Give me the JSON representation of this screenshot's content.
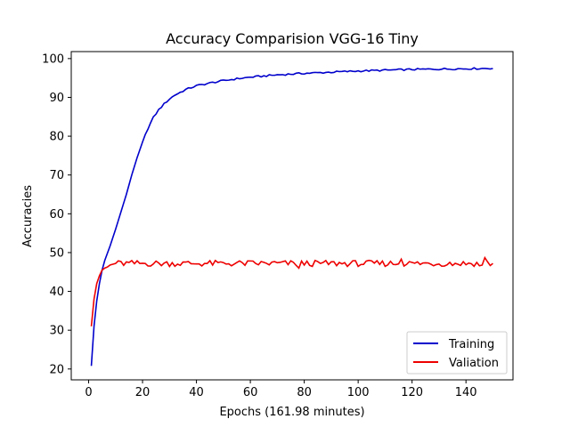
{
  "chart_data": {
    "type": "line",
    "title": "Accuracy Comparision VGG-16 Tiny",
    "xlabel": "Epochs (161.98 minutes)",
    "ylabel": "Accuracies",
    "xlim": [
      -6.45,
      157.45
    ],
    "ylim": [
      17.2,
      101.8
    ],
    "xticks": [
      0,
      20,
      40,
      60,
      80,
      100,
      120,
      140
    ],
    "yticks": [
      20,
      30,
      40,
      50,
      60,
      70,
      80,
      90,
      100
    ],
    "grid": false,
    "legend_position": "bottom-right",
    "series": [
      {
        "name": "Training",
        "color": "#0000cc",
        "anchors": [
          [
            1,
            20.8
          ],
          [
            2,
            31
          ],
          [
            3,
            37.5
          ],
          [
            4,
            42
          ],
          [
            5,
            45.5
          ],
          [
            6,
            48
          ],
          [
            8,
            51.8
          ],
          [
            10,
            56
          ],
          [
            12,
            60.5
          ],
          [
            14,
            65
          ],
          [
            16,
            70
          ],
          [
            18,
            74.5
          ],
          [
            20,
            78.5
          ],
          [
            22,
            82
          ],
          [
            24,
            84.8
          ],
          [
            26,
            86.8
          ],
          [
            28,
            88.3
          ],
          [
            30,
            89.6
          ],
          [
            32,
            90.6
          ],
          [
            34,
            91.3
          ],
          [
            36,
            92
          ],
          [
            38,
            92.5
          ],
          [
            40,
            93
          ],
          [
            45,
            93.7
          ],
          [
            50,
            94.3
          ],
          [
            55,
            94.8
          ],
          [
            60,
            95.2
          ],
          [
            70,
            95.8
          ],
          [
            80,
            96.2
          ],
          [
            90,
            96.5
          ],
          [
            100,
            96.8
          ],
          [
            110,
            97
          ],
          [
            120,
            97.2
          ],
          [
            130,
            97.3
          ],
          [
            140,
            97.4
          ],
          [
            150,
            97.5
          ]
        ]
      },
      {
        "name": "Valiation",
        "color": "#ee0000",
        "anchors": [
          [
            1,
            31
          ],
          [
            2,
            38
          ],
          [
            3,
            42
          ],
          [
            4,
            44
          ],
          [
            5,
            45.5
          ],
          [
            6,
            46
          ],
          [
            7,
            46.3
          ],
          [
            8,
            46.8
          ],
          [
            9,
            47
          ],
          [
            10,
            47.2
          ]
        ]
      }
    ]
  }
}
